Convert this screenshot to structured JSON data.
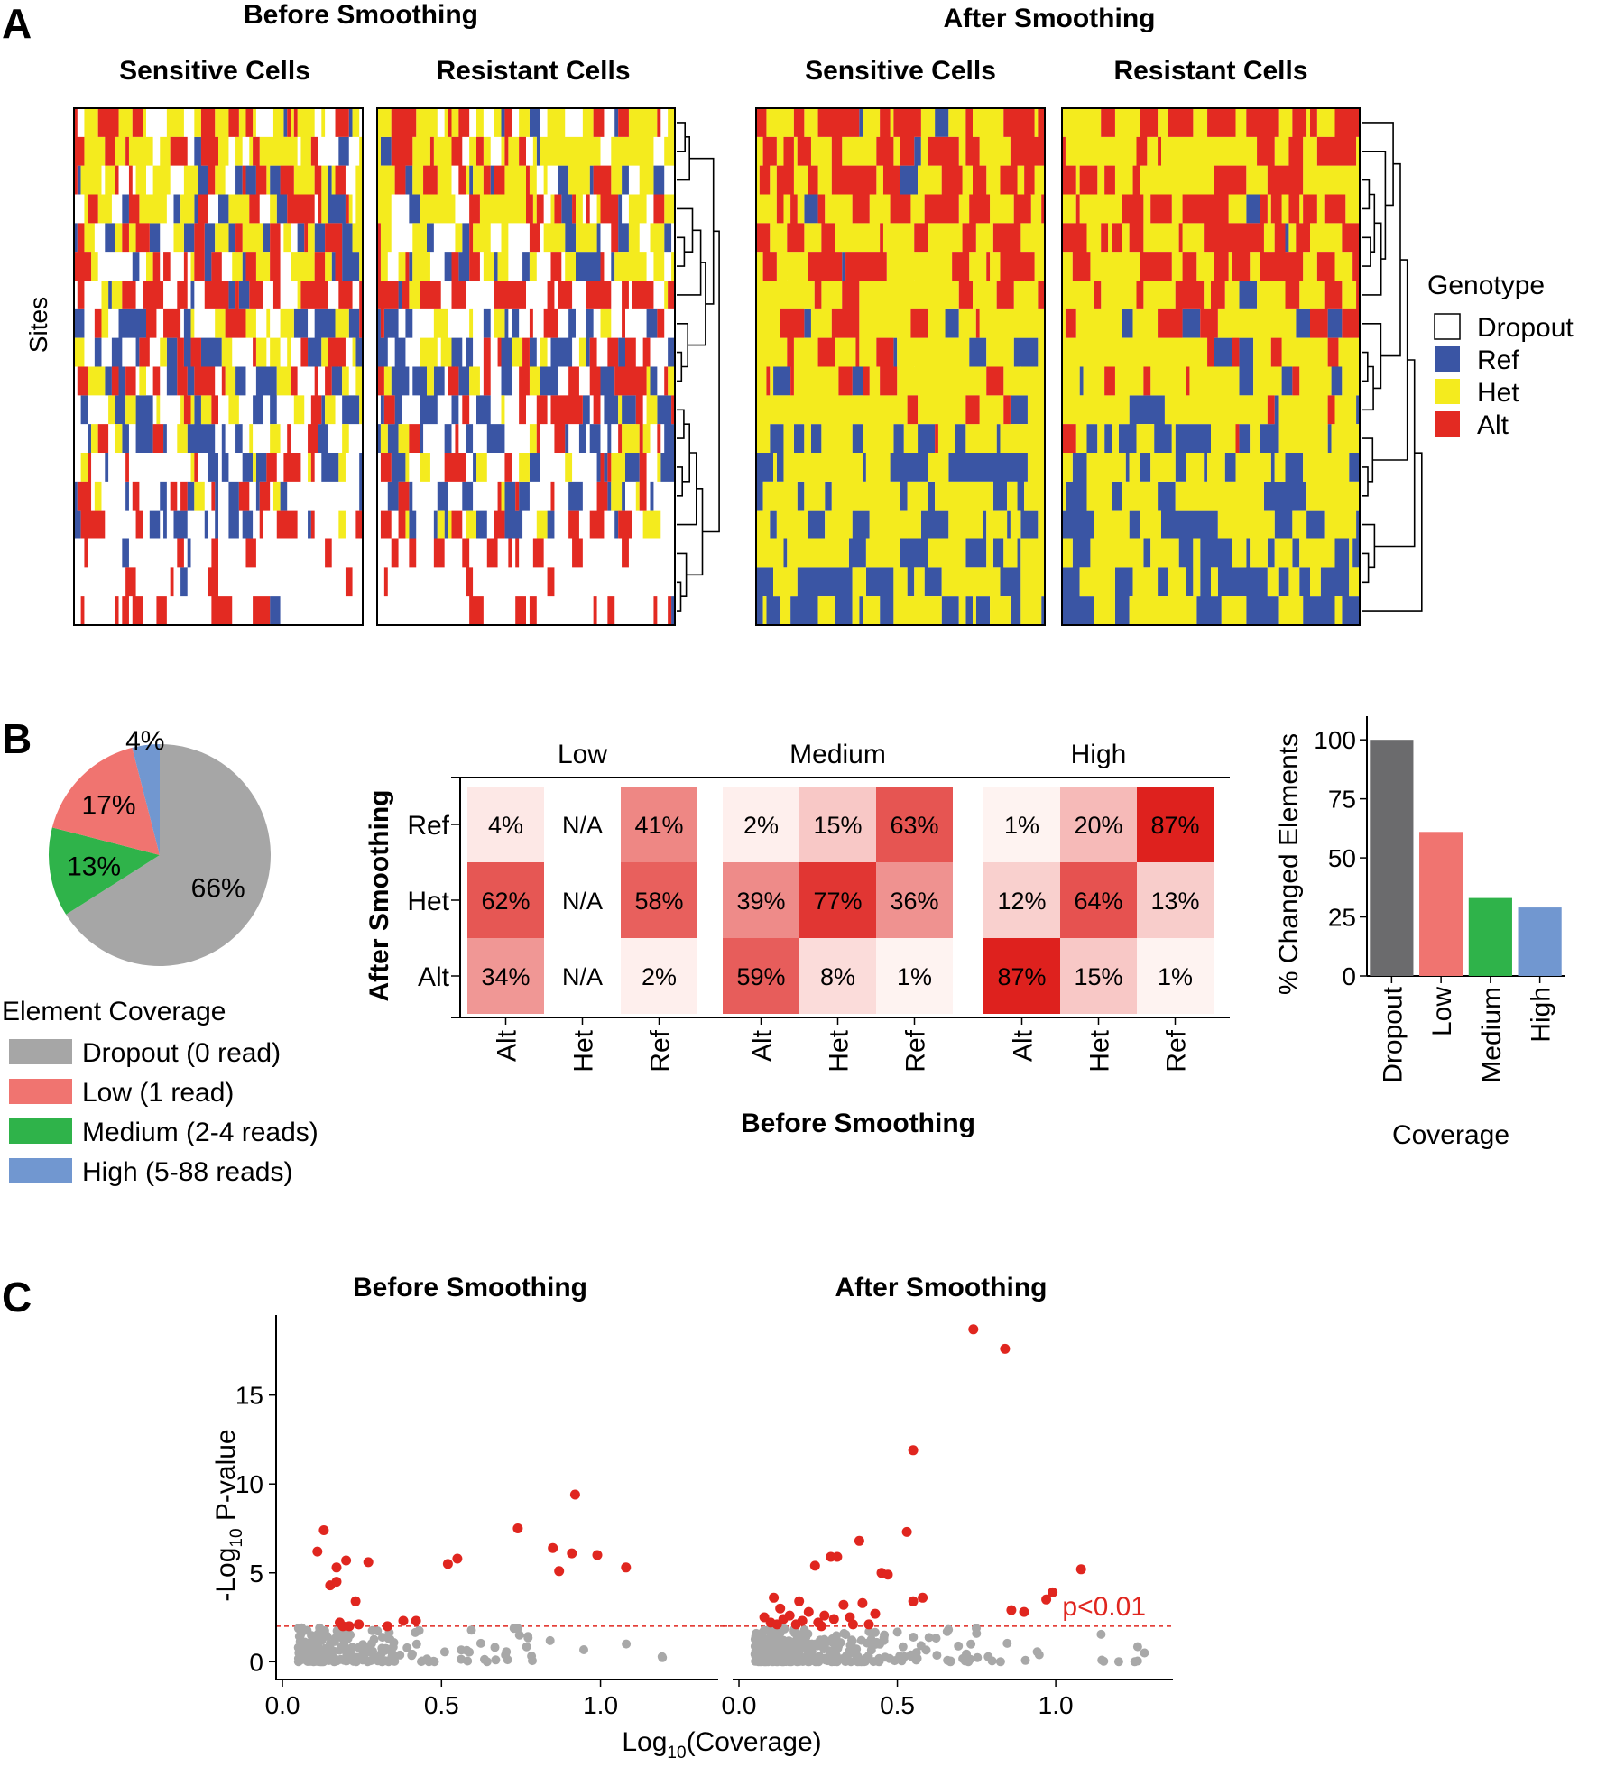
{
  "colors": {
    "dropout": "#ffffff",
    "ref": "#3a55a4",
    "het": "#f4eb1e",
    "alt": "#e32a22",
    "cov_dropout": "#a6a6a6",
    "cov_low": "#f07470",
    "cov_medium": "#2fb34a",
    "cov_high": "#7197d0",
    "bar_dropout": "#6b6b6d",
    "sig_point": "#e0261f",
    "nonsig_point": "#a8a8a8",
    "threshold_line": "#e0261f"
  },
  "panel_a": {
    "letter": "A",
    "before_title": "Before Smoothing",
    "after_title": "After Smoothing",
    "ylabel": "Sites",
    "heatmaps": [
      {
        "group": "before",
        "label": "Sensitive Cells"
      },
      {
        "group": "before",
        "label": "Resistant Cells"
      },
      {
        "group": "after",
        "label": "Sensitive Cells"
      },
      {
        "group": "after",
        "label": "Resistant Cells"
      }
    ],
    "legend": {
      "title": "Genotype",
      "items": [
        "Dropout",
        "Ref",
        "Het",
        "Alt"
      ]
    }
  },
  "panel_b": {
    "letter": "B",
    "chart_data": [
      {
        "type": "pie",
        "title": "Element Coverage",
        "labels": [
          "Dropout (0 read)",
          "Low (1 read)",
          "Medium (2-4 reads)",
          "High (5-88 reads)"
        ],
        "values": [
          66,
          17,
          13,
          4
        ],
        "value_labels": [
          "66%",
          "17%",
          "13%",
          "4%"
        ]
      },
      {
        "type": "heatmap",
        "xlabel": "Before Smoothing",
        "ylabel": "After Smoothing",
        "facets": [
          "Low",
          "Medium",
          "High"
        ],
        "x_categories": [
          "Alt",
          "Het",
          "Ref"
        ],
        "y_categories": [
          "Ref",
          "Het",
          "Alt"
        ],
        "cells": [
          [
            [
              "4%",
              "N/A",
              "41%"
            ],
            [
              "62%",
              "N/A",
              "58%"
            ],
            [
              "34%",
              "N/A",
              "2%"
            ]
          ],
          [
            [
              "2%",
              "15%",
              "63%"
            ],
            [
              "39%",
              "77%",
              "36%"
            ],
            [
              "59%",
              "8%",
              "1%"
            ]
          ],
          [
            [
              "1%",
              "20%",
              "87%"
            ],
            [
              "12%",
              "64%",
              "13%"
            ],
            [
              "87%",
              "15%",
              "1%"
            ]
          ]
        ]
      },
      {
        "type": "bar",
        "categories": [
          "Dropout",
          "Low",
          "Medium",
          "High"
        ],
        "values": [
          100,
          61,
          33,
          29
        ],
        "xlabel": "Coverage",
        "ylabel": "% Changed Elements",
        "ylim": [
          0,
          110
        ],
        "yticks": [
          "0",
          "25",
          "50",
          "75",
          "100"
        ]
      }
    ]
  },
  "panel_c": {
    "letter": "C",
    "chart_data": {
      "type": "scatter",
      "xlabel_prefix": "Log",
      "xlabel_sub": "10",
      "xlabel_suffix": "(Coverage)",
      "ylabel_prefix": "-Log",
      "ylabel_sub": "10",
      "ylabel_suffix": " P-value",
      "xticks": [
        "0.0",
        "0.5",
        "1.0"
      ],
      "yticks": [
        "0",
        "5",
        "10",
        "15"
      ],
      "xlim": [
        -0.02,
        1.37
      ],
      "ylim": [
        -1,
        19.5
      ],
      "threshold": 2,
      "threshold_label": "p<0.01",
      "panels": [
        {
          "title": "Before Smoothing",
          "significant": [
            [
              0.11,
              6.2
            ],
            [
              0.13,
              7.4
            ],
            [
              0.15,
              4.3
            ],
            [
              0.17,
              4.5
            ],
            [
              0.17,
              5.3
            ],
            [
              0.2,
              5.7
            ],
            [
              0.19,
              2.0
            ],
            [
              0.23,
              3.4
            ],
            [
              0.27,
              5.6
            ],
            [
              0.18,
              2.2
            ],
            [
              0.21,
              2.0
            ],
            [
              0.24,
              2.1
            ],
            [
              0.33,
              2.0
            ],
            [
              0.38,
              2.3
            ],
            [
              0.42,
              2.3
            ],
            [
              0.52,
              5.5
            ],
            [
              0.55,
              5.8
            ],
            [
              0.74,
              7.5
            ],
            [
              0.85,
              6.4
            ],
            [
              0.87,
              5.1
            ],
            [
              0.91,
              6.1
            ],
            [
              0.92,
              9.4
            ],
            [
              0.99,
              6.0
            ],
            [
              1.08,
              5.3
            ]
          ]
        },
        {
          "title": "After Smoothing",
          "significant": [
            [
              0.74,
              18.7
            ],
            [
              0.84,
              17.6
            ],
            [
              0.55,
              11.9
            ],
            [
              0.53,
              7.3
            ],
            [
              0.38,
              6.8
            ],
            [
              0.29,
              5.9
            ],
            [
              0.31,
              5.9
            ],
            [
              0.24,
              5.4
            ],
            [
              0.45,
              5.0
            ],
            [
              0.47,
              4.9
            ],
            [
              0.55,
              3.4
            ],
            [
              0.58,
              3.6
            ],
            [
              0.11,
              3.6
            ],
            [
              0.13,
              3.0
            ],
            [
              0.08,
              2.5
            ],
            [
              0.1,
              2.2
            ],
            [
              0.14,
              2.4
            ],
            [
              0.16,
              2.6
            ],
            [
              0.18,
              2.1
            ],
            [
              0.2,
              2.3
            ],
            [
              0.22,
              2.8
            ],
            [
              0.25,
              2.2
            ],
            [
              0.27,
              2.6
            ],
            [
              0.3,
              2.4
            ],
            [
              0.33,
              3.2
            ],
            [
              0.35,
              2.5
            ],
            [
              0.39,
              3.3
            ],
            [
              0.41,
              2.1
            ],
            [
              0.43,
              2.7
            ],
            [
              0.86,
              2.9
            ],
            [
              0.9,
              2.8
            ],
            [
              0.97,
              3.5
            ],
            [
              0.99,
              3.9
            ],
            [
              1.08,
              5.2
            ],
            [
              0.12,
              2.1
            ],
            [
              0.26,
              2.0
            ],
            [
              0.36,
              2.1
            ],
            [
              0.19,
              3.4
            ]
          ]
        }
      ]
    }
  }
}
